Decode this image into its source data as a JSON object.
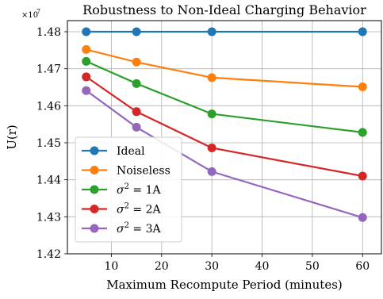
{
  "chart_data": {
    "type": "line",
    "title": "Robustness to Non-Ideal Charging Behavior",
    "xlabel": "Maximum Recompute Period (minutes)",
    "ylabel": "U(r)",
    "y_offset_label": "×10",
    "y_offset_exponent": "7",
    "x": [
      5,
      15,
      30,
      60
    ],
    "xlim": [
      1.25,
      63.75
    ],
    "ylim": [
      1.42,
      1.483
    ],
    "xticks": [
      10,
      20,
      30,
      40,
      50,
      60
    ],
    "yticks": [
      1.42,
      1.43,
      1.44,
      1.45,
      1.46,
      1.47,
      1.48
    ],
    "xtick_labels": [
      "10",
      "20",
      "30",
      "40",
      "50",
      "60"
    ],
    "ytick_labels": [
      "1.42",
      "1.43",
      "1.44",
      "1.45",
      "1.46",
      "1.47",
      "1.48"
    ],
    "grid": true,
    "legend_position": "lower-left",
    "series": [
      {
        "name": "Ideal",
        "name_math": {
          "base": "",
          "sup": "",
          "rest": ""
        },
        "color": "#1f77b4",
        "values": [
          1.48,
          1.48,
          1.48,
          1.48
        ]
      },
      {
        "name": "Noiseless",
        "name_math": {
          "base": "",
          "sup": "",
          "rest": ""
        },
        "color": "#ff7f0e",
        "values": [
          1.4752,
          1.4718,
          1.4676,
          1.4651
        ]
      },
      {
        "name": "σ2 = 1A",
        "name_math": {
          "base": "σ",
          "sup": "2",
          "rest": " = 1A"
        },
        "color": "#2ca02c",
        "values": [
          1.472,
          1.466,
          1.4578,
          1.4528
        ]
      },
      {
        "name": "σ2 = 2A",
        "name_math": {
          "base": "σ",
          "sup": "2",
          "rest": " = 2A"
        },
        "color": "#d62728",
        "values": [
          1.4678,
          1.4584,
          1.4486,
          1.441
        ]
      },
      {
        "name": "σ2 = 3A",
        "name_math": {
          "base": "σ",
          "sup": "2",
          "rest": " = 3A"
        },
        "color": "#9467bd",
        "values": [
          1.4641,
          1.4542,
          1.4422,
          1.4298
        ]
      }
    ]
  }
}
